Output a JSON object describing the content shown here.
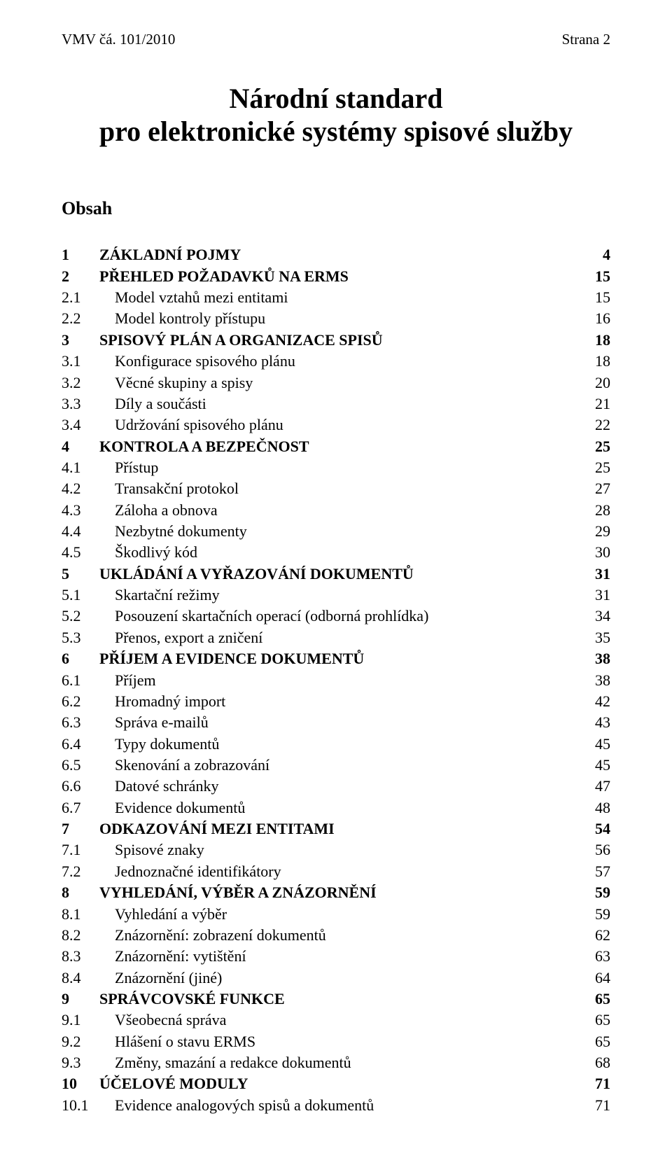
{
  "header": {
    "left": "VMV čá. 101/2010",
    "right": "Strana 2"
  },
  "title_line1": "Národní standard",
  "title_line2": "pro elektronické systémy spisové služby",
  "obsah_label": "Obsah",
  "toc": [
    {
      "num": "1",
      "label": "ZÁKLADNÍ POJMY",
      "page": "4",
      "level": 1,
      "bold": true
    },
    {
      "num": "2",
      "label": "PŘEHLED POŽADAVKŮ NA ERMS",
      "page": "15",
      "level": 1,
      "bold": true
    },
    {
      "num": "2.1",
      "label": "Model vztahů mezi entitami",
      "page": "15",
      "level": 2,
      "bold": false
    },
    {
      "num": "2.2",
      "label": "Model kontroly přístupu",
      "page": "16",
      "level": 2,
      "bold": false
    },
    {
      "num": "3",
      "label": "SPISOVÝ PLÁN A ORGANIZACE SPISŮ",
      "page": "18",
      "level": 1,
      "bold": true
    },
    {
      "num": "3.1",
      "label": "Konfigurace spisového plánu",
      "page": "18",
      "level": 2,
      "bold": false
    },
    {
      "num": "3.2",
      "label": "Věcné skupiny a spisy",
      "page": "20",
      "level": 2,
      "bold": false
    },
    {
      "num": "3.3",
      "label": "Díly a součásti",
      "page": "21",
      "level": 2,
      "bold": false
    },
    {
      "num": "3.4",
      "label": "Udržování spisového plánu",
      "page": "22",
      "level": 2,
      "bold": false
    },
    {
      "num": "4",
      "label": "KONTROLA A BEZPEČNOST",
      "page": "25",
      "level": 1,
      "bold": true
    },
    {
      "num": "4.1",
      "label": "Přístup",
      "page": "25",
      "level": 2,
      "bold": false
    },
    {
      "num": "4.2",
      "label": "Transakční protokol",
      "page": "27",
      "level": 2,
      "bold": false
    },
    {
      "num": "4.3",
      "label": "Záloha a obnova",
      "page": "28",
      "level": 2,
      "bold": false
    },
    {
      "num": "4.4",
      "label": "Nezbytné dokumenty",
      "page": "29",
      "level": 2,
      "bold": false
    },
    {
      "num": "4.5",
      "label": "Škodlivý kód",
      "page": "30",
      "level": 2,
      "bold": false
    },
    {
      "num": "5",
      "label": "UKLÁDÁNÍ A VYŘAZOVÁNÍ DOKUMENTŮ",
      "page": "31",
      "level": 1,
      "bold": true
    },
    {
      "num": "5.1",
      "label": "Skartační režimy",
      "page": "31",
      "level": 2,
      "bold": false
    },
    {
      "num": "5.2",
      "label": "Posouzení skartačních operací (odborná prohlídka)",
      "page": "34",
      "level": 2,
      "bold": false
    },
    {
      "num": "5.3",
      "label": "Přenos, export a zničení",
      "page": "35",
      "level": 2,
      "bold": false
    },
    {
      "num": "6",
      "label": "PŘÍJEM A EVIDENCE DOKUMENTŮ",
      "page": "38",
      "level": 1,
      "bold": true
    },
    {
      "num": "6.1",
      "label": "Příjem",
      "page": "38",
      "level": 2,
      "bold": false
    },
    {
      "num": "6.2",
      "label": "Hromadný import",
      "page": "42",
      "level": 2,
      "bold": false
    },
    {
      "num": "6.3",
      "label": "Správa e-mailů",
      "page": "43",
      "level": 2,
      "bold": false
    },
    {
      "num": "6.4",
      "label": "Typy dokumentů",
      "page": "45",
      "level": 2,
      "bold": false
    },
    {
      "num": "6.5",
      "label": "Skenování a zobrazování",
      "page": "45",
      "level": 2,
      "bold": false
    },
    {
      "num": "6.6",
      "label": "Datové schránky",
      "page": "47",
      "level": 2,
      "bold": false
    },
    {
      "num": "6.7",
      "label": "Evidence dokumentů",
      "page": "48",
      "level": 2,
      "bold": false
    },
    {
      "num": "7",
      "label": "ODKAZOVÁNÍ MEZI ENTITAMI",
      "page": "54",
      "level": 1,
      "bold": true
    },
    {
      "num": "7.1",
      "label": "Spisové znaky",
      "page": "56",
      "level": 2,
      "bold": false
    },
    {
      "num": "7.2",
      "label": "Jednoznačné identifikátory",
      "page": "57",
      "level": 2,
      "bold": false
    },
    {
      "num": "8",
      "label": "VYHLEDÁNÍ, VÝBĚR A ZNÁZORNĚNÍ",
      "page": "59",
      "level": 1,
      "bold": true
    },
    {
      "num": "8.1",
      "label": "Vyhledání a výběr",
      "page": "59",
      "level": 2,
      "bold": false
    },
    {
      "num": "8.2",
      "label": "Znázornění: zobrazení dokumentů",
      "page": "62",
      "level": 2,
      "bold": false
    },
    {
      "num": "8.3",
      "label": "Znázornění: vytištění",
      "page": "63",
      "level": 2,
      "bold": false
    },
    {
      "num": "8.4",
      "label": "Znázornění (jiné)",
      "page": "64",
      "level": 2,
      "bold": false
    },
    {
      "num": "9",
      "label": "SPRÁVCOVSKÉ FUNKCE",
      "page": "65",
      "level": 1,
      "bold": true
    },
    {
      "num": "9.1",
      "label": "Všeobecná správa",
      "page": "65",
      "level": 2,
      "bold": false
    },
    {
      "num": "9.2",
      "label": "Hlášení o stavu ERMS",
      "page": "65",
      "level": 2,
      "bold": false
    },
    {
      "num": "9.3",
      "label": "Změny, smazání a redakce dokumentů",
      "page": "68",
      "level": 2,
      "bold": false
    },
    {
      "num": "10",
      "label": "ÚČELOVÉ MODULY",
      "page": "71",
      "level": 1,
      "bold": true
    },
    {
      "num": "10.1",
      "label": "Evidence analogových spisů a dokumentů",
      "page": "71",
      "level": 2,
      "bold": false
    }
  ]
}
